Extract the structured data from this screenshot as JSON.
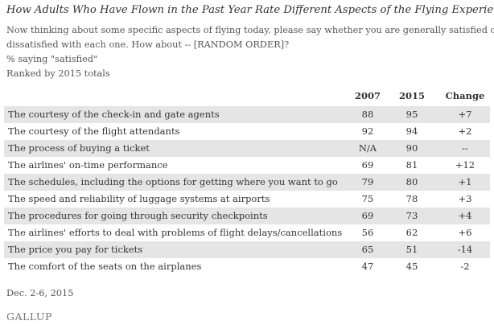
{
  "title": "How Adults Who Have Flown in the Past Year Rate Different Aspects of the Flying Experience",
  "subtitle_lines": [
    "Now thinking about some specific aspects of flying today, please say whether you are generally satisfied or",
    "dissatisfied with each one. How about -- [RANDOM ORDER]?",
    "% saying \"satisfied\"",
    "Ranked by 2015 totals"
  ],
  "table": {
    "headers": [
      "2007",
      "2015",
      "Change"
    ],
    "rows": [
      {
        "label": "The courtesy of the check-in and gate agents",
        "y2007": "88",
        "y2015": "95",
        "change": "+7"
      },
      {
        "label": "The courtesy of the flight attendants",
        "y2007": "92",
        "y2015": "94",
        "change": "+2"
      },
      {
        "label": "The process of buying a ticket",
        "y2007": "N/A",
        "y2015": "90",
        "change": "--"
      },
      {
        "label": "The airlines' on-time performance",
        "y2007": "69",
        "y2015": "81",
        "change": "+12"
      },
      {
        "label": "The schedules, including the options for getting where you want to go",
        "y2007": "79",
        "y2015": "80",
        "change": "+1"
      },
      {
        "label": "The speed and reliability of luggage systems at airports",
        "y2007": "75",
        "y2015": "78",
        "change": "+3"
      },
      {
        "label": "The procedures for going through security checkpoints",
        "y2007": "69",
        "y2015": "73",
        "change": "+4"
      },
      {
        "label": "The airlines' efforts to deal with problems of flight delays/cancellations",
        "y2007": "56",
        "y2015": "62",
        "change": "+6"
      },
      {
        "label": "The price you pay for tickets",
        "y2007": "65",
        "y2015": "51",
        "change": "-14"
      },
      {
        "label": "The comfort of the seats on the airplanes",
        "y2007": "47",
        "y2015": "45",
        "change": "-2"
      }
    ]
  },
  "footer": {
    "date": "Dec. 2-6, 2015",
    "brand": "GALLUP"
  },
  "colors": {
    "row_shade": "#e5e5e5",
    "text": "#333333"
  }
}
